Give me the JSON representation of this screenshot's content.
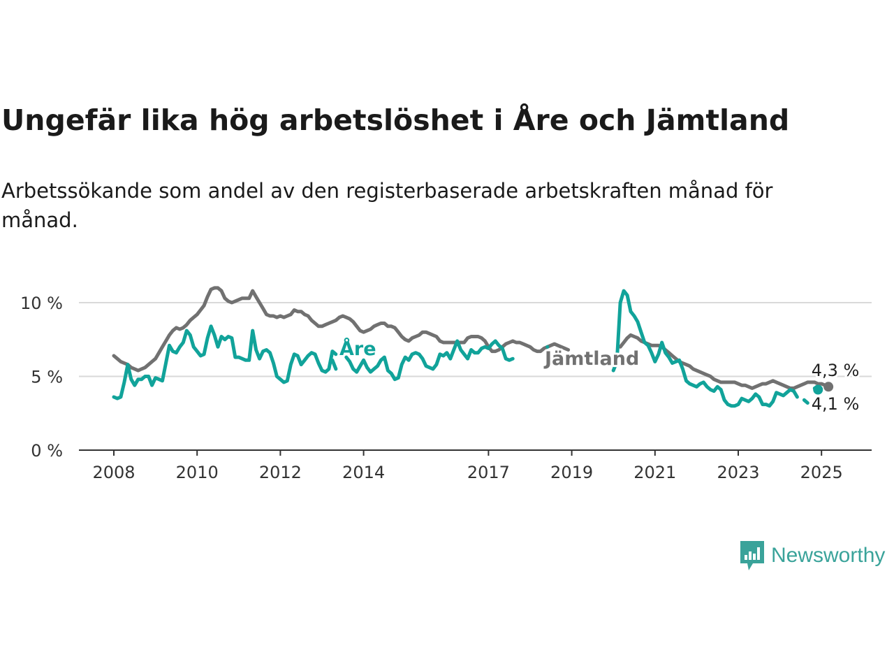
{
  "title": "Ungefär lika hög arbetslöshet i Åre och Jämtland",
  "subtitle": "Arbetssökande som andel av den registerbaserade arbetskraften månad för månad.",
  "brand": {
    "name": "Newsworthy",
    "icon": "chart-logo-icon"
  },
  "colors": {
    "are": "#11a39a",
    "jamtland": "#717171",
    "grid": "#d9d9d9",
    "axis": "#333333"
  },
  "chart_data": {
    "type": "line",
    "x_ticks": [
      "2008",
      "2010",
      "2012",
      "2014",
      "2017",
      "2019",
      "2021",
      "2023",
      "2025"
    ],
    "y_ticks": [
      "0 %",
      "5 %",
      "10 %"
    ],
    "ylim": [
      0,
      10.5
    ],
    "xlim": [
      "2008-01",
      "2025-12"
    ],
    "grid": "horizontal",
    "series": [
      {
        "name": "Jämtland",
        "end_label": "4,3 %",
        "segments": [
          {
            "start": "2008-01",
            "values": [
              6.4,
              6.2,
              6.0,
              5.9,
              5.8,
              5.6,
              5.5,
              5.4,
              5.5,
              5.6,
              5.8,
              6.0,
              6.2,
              6.6,
              7.0,
              7.4,
              7.8,
              8.1,
              8.3,
              8.2,
              8.3,
              8.5,
              8.8,
              9.0,
              9.2,
              9.5,
              9.8,
              10.4,
              10.9,
              11.0,
              11.0,
              10.8,
              10.3,
              10.1,
              10.0,
              10.1,
              10.2,
              10.3,
              10.3,
              10.3,
              10.8,
              10.4,
              10.0,
              9.6,
              9.2,
              9.1,
              9.1,
              9.0,
              9.1,
              9.0,
              9.1,
              9.2,
              9.5,
              9.4,
              9.4,
              9.2,
              9.1,
              8.8,
              8.6,
              8.4,
              8.4,
              8.5,
              8.6,
              8.7,
              8.8,
              9.0,
              9.1,
              9.0,
              8.9,
              8.7,
              8.4,
              8.1,
              8.0,
              8.1,
              8.2,
              8.4,
              8.5,
              8.6,
              8.6,
              8.4,
              8.4,
              8.3,
              8.0,
              7.7,
              7.5,
              7.4,
              7.6,
              7.7,
              7.8,
              8.0,
              8.0,
              7.9,
              7.8,
              7.7,
              7.4,
              7.3,
              7.3,
              7.3,
              7.3,
              7.3,
              7.3,
              7.3,
              7.6,
              7.7,
              7.7,
              7.7,
              7.6,
              7.4,
              7.0,
              6.7,
              6.7,
              6.8,
              7.0,
              7.2,
              7.3,
              7.4,
              7.3,
              7.3,
              7.2,
              7.1,
              7.0,
              6.8,
              6.7,
              6.7,
              6.9,
              7.0,
              7.1,
              7.2,
              7.1,
              7.0,
              6.9,
              6.8
            ]
          },
          {
            "start": "2020-03",
            "values": [
              7.0,
              7.3,
              7.6,
              7.8,
              7.7,
              7.6,
              7.4,
              7.3,
              7.2,
              7.1,
              7.1,
              7.1,
              7.0,
              6.8,
              6.6,
              6.4,
              6.2,
              6.0,
              5.9,
              5.8,
              5.7,
              5.5,
              5.4,
              5.3,
              5.2,
              5.1,
              5.0,
              4.8,
              4.7,
              4.6,
              4.6,
              4.6,
              4.6,
              4.6,
              4.5,
              4.4,
              4.4,
              4.3,
              4.2,
              4.3,
              4.4,
              4.5,
              4.5,
              4.6,
              4.7,
              4.6,
              4.5,
              4.4,
              4.3,
              4.2,
              4.2,
              4.3,
              4.4,
              4.5,
              4.6,
              4.6,
              4.6,
              4.5,
              4.5,
              4.4,
              4.3
            ]
          }
        ]
      },
      {
        "name": "Åre",
        "end_label": "4,1 %",
        "segments": [
          {
            "start": "2008-01",
            "values": [
              3.6,
              3.5,
              3.6,
              4.6,
              5.8,
              4.8,
              4.4,
              4.8,
              4.8,
              5.0,
              5.0,
              4.4,
              4.9,
              4.8,
              4.7,
              5.9,
              7.1,
              6.7,
              6.6,
              7.0,
              7.3,
              8.1,
              7.8,
              7.0,
              6.7,
              6.4,
              6.5,
              7.6,
              8.4,
              7.8,
              7.0,
              7.7,
              7.5,
              7.7,
              7.6,
              6.3,
              6.3,
              6.2,
              6.1,
              6.1,
              8.1,
              6.8,
              6.2,
              6.7,
              6.8,
              6.6,
              5.9,
              5.0,
              4.8,
              4.6,
              4.7,
              5.8,
              6.5,
              6.4,
              5.8,
              6.1,
              6.4,
              6.6,
              6.5,
              5.9,
              5.4,
              5.3,
              5.5,
              6.7,
              6.5
            ]
          },
          {
            "start": "2013-04",
            "values": [
              6.1,
              5.5
            ]
          },
          {
            "start": "2013-08",
            "values": [
              6.3,
              6.0,
              5.5,
              5.3,
              5.7,
              6.1,
              5.6,
              5.3,
              5.5,
              5.7,
              6.1,
              6.3,
              5.4,
              5.2,
              4.8,
              4.9,
              5.8,
              6.3,
              6.1,
              6.5,
              6.6,
              6.5,
              6.2,
              5.7,
              5.6,
              5.5,
              5.8,
              6.5,
              6.4,
              6.6,
              6.2,
              6.8,
              7.4,
              6.8,
              6.5,
              6.2,
              6.8,
              6.6,
              6.6,
              6.9,
              7.0,
              6.9,
              7.2,
              7.4,
              7.1,
              6.9,
              6.2,
              6.1,
              6.2
            ]
          },
          {
            "start": "2018-06",
            "values": [
              7.0
            ]
          },
          {
            "start": "2020-01",
            "values": [
              5.4,
              6.0,
              10.0,
              10.8,
              10.5,
              9.4,
              9.1,
              8.7,
              8.0,
              7.3,
              7.1,
              6.6,
              6.0,
              6.5,
              7.3,
              6.6,
              6.3,
              5.9,
              6.0,
              6.1,
              5.5,
              4.7,
              4.5,
              4.4,
              4.3,
              4.5,
              4.6,
              4.3,
              4.1,
              4.0,
              4.3,
              4.1,
              3.4,
              3.1,
              3.0,
              3.0,
              3.1,
              3.5,
              3.4,
              3.3,
              3.5,
              3.8,
              3.6,
              3.1,
              3.1,
              3.0,
              3.3,
              3.9,
              3.8,
              3.7,
              3.9,
              4.1,
              4.0,
              3.6
            ]
          },
          {
            "start": "2024-08",
            "values": [
              3.4,
              3.2
            ]
          },
          {
            "start": "2024-11",
            "values": [
              4.2,
              4.1
            ]
          }
        ]
      }
    ]
  }
}
